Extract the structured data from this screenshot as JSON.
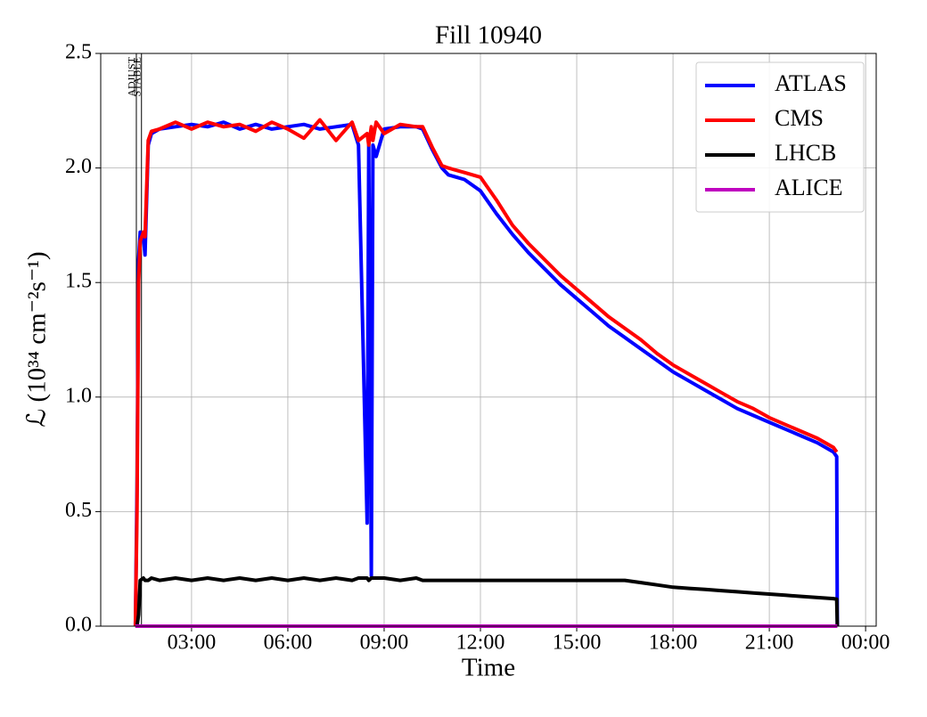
{
  "chart_data": {
    "type": "line",
    "title": "Fill 10940",
    "x_label": "Time",
    "y_label": "ℒ (10³⁴ cm⁻²s⁻¹)",
    "x": [
      1.25,
      1.3,
      1.35,
      1.4,
      1.5,
      1.55,
      1.65,
      1.75,
      2,
      2.5,
      3,
      3.5,
      4,
      4.5,
      5,
      5.5,
      6,
      6.5,
      7,
      7.5,
      8,
      8.2,
      8.47,
      8.52,
      8.6,
      8.65,
      8.75,
      9,
      9.5,
      10,
      10.2,
      10.5,
      10.8,
      11,
      11.5,
      12,
      12.5,
      13,
      13.5,
      14,
      14.5,
      15,
      15.5,
      16,
      16.5,
      17,
      17.5,
      18,
      18.5,
      19,
      19.5,
      20,
      20.5,
      21,
      21.5,
      22,
      22.5,
      23,
      23.1,
      23.12
    ],
    "series": [
      {
        "name": "ATLAS",
        "color": "#0000ff",
        "values": [
          0,
          0.6,
          1.6,
          1.72,
          1.7,
          1.62,
          2.1,
          2.15,
          2.17,
          2.18,
          2.19,
          2.18,
          2.2,
          2.17,
          2.19,
          2.17,
          2.18,
          2.19,
          2.17,
          2.18,
          2.19,
          2.1,
          0.45,
          2.1,
          0.22,
          2.1,
          2.05,
          2.17,
          2.18,
          2.18,
          2.17,
          2.08,
          2.0,
          1.97,
          1.95,
          1.9,
          1.8,
          1.71,
          1.63,
          1.56,
          1.49,
          1.43,
          1.37,
          1.31,
          1.26,
          1.21,
          1.16,
          1.11,
          1.07,
          1.03,
          0.99,
          0.95,
          0.92,
          0.89,
          0.86,
          0.83,
          0.8,
          0.76,
          0.74,
          0
        ]
      },
      {
        "name": "CMS",
        "color": "#ff0000",
        "values": [
          0,
          0.5,
          1.5,
          1.68,
          1.72,
          1.7,
          2.12,
          2.16,
          2.17,
          2.2,
          2.17,
          2.2,
          2.18,
          2.19,
          2.16,
          2.2,
          2.17,
          2.13,
          2.21,
          2.12,
          2.2,
          2.12,
          2.15,
          2.1,
          2.18,
          2.12,
          2.2,
          2.15,
          2.19,
          2.18,
          2.18,
          2.09,
          2.01,
          2.0,
          1.98,
          1.96,
          1.86,
          1.75,
          1.67,
          1.6,
          1.53,
          1.47,
          1.41,
          1.35,
          1.3,
          1.25,
          1.19,
          1.14,
          1.1,
          1.06,
          1.02,
          0.98,
          0.95,
          0.91,
          0.88,
          0.85,
          0.82,
          0.78,
          0.76,
          null
        ]
      },
      {
        "name": "LHCB",
        "color": "#000000",
        "values": [
          0,
          0,
          0.05,
          0.2,
          0.21,
          0.2,
          0.2,
          0.21,
          0.2,
          0.21,
          0.2,
          0.21,
          0.2,
          0.21,
          0.2,
          0.21,
          0.2,
          0.21,
          0.2,
          0.21,
          0.2,
          0.21,
          0.21,
          0.2,
          0.21,
          0.21,
          0.21,
          0.21,
          0.2,
          0.21,
          0.2,
          0.2,
          0.2,
          0.2,
          0.2,
          0.2,
          0.2,
          0.2,
          0.2,
          0.2,
          0.2,
          0.2,
          0.2,
          0.2,
          0.2,
          0.19,
          0.18,
          0.17,
          0.165,
          0.16,
          0.155,
          0.15,
          0.145,
          0.14,
          0.135,
          0.13,
          0.125,
          0.12,
          0.118,
          0
        ]
      },
      {
        "name": "ALICE",
        "color": "#bf00bf",
        "values": [
          0,
          0,
          0,
          0,
          0,
          0,
          0,
          0,
          0,
          0,
          0,
          0,
          0,
          0,
          0,
          0,
          0,
          0,
          0,
          0,
          0,
          0,
          0,
          0,
          0,
          0,
          0,
          0,
          0,
          0,
          0,
          0,
          0,
          0,
          0,
          0,
          0,
          0,
          0,
          0,
          0,
          0,
          0,
          0,
          0,
          0,
          0,
          0,
          0,
          0,
          0,
          0,
          0,
          0,
          0,
          0,
          0,
          0,
          0,
          0
        ]
      }
    ],
    "annotations": [
      {
        "text": "ADJUST",
        "x": 1.28
      },
      {
        "text": "STABLE",
        "x": 1.44
      }
    ],
    "xlim": [
      0.17,
      24.33
    ],
    "xticks": [
      {
        "value": 3,
        "label": "03:00"
      },
      {
        "value": 6,
        "label": "06:00"
      },
      {
        "value": 9,
        "label": "09:00"
      },
      {
        "value": 12,
        "label": "12:00"
      },
      {
        "value": 15,
        "label": "15:00"
      },
      {
        "value": 18,
        "label": "18:00"
      },
      {
        "value": 21,
        "label": "21:00"
      },
      {
        "value": 24,
        "label": "00:00"
      }
    ],
    "ylim": [
      0,
      2.5
    ],
    "yticks": [
      {
        "value": 0,
        "label": "0.0"
      },
      0.5,
      {
        "value": 1,
        "label": "1.0"
      },
      1.5,
      {
        "value": 2,
        "label": "2.0"
      },
      2.5
    ],
    "grid": true,
    "legend": "upper right"
  }
}
